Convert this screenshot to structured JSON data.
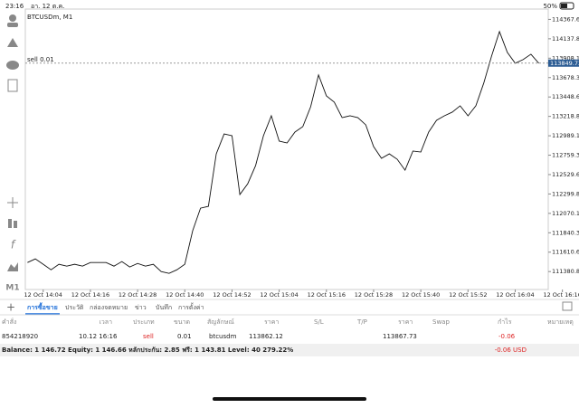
{
  "status_bar": {
    "time": "23:16",
    "date": "อา. 12 ต.ค.",
    "battery": "50%"
  },
  "chart": {
    "type": "line",
    "title": "BTCUSDm, M1",
    "order_label": "sell 0.01",
    "color": "#111111",
    "current_price": 113849.73,
    "x": [
      0,
      2,
      4,
      6,
      8,
      10,
      12,
      14,
      16,
      18,
      20,
      22,
      24,
      26,
      28,
      30,
      32,
      34,
      36,
      38,
      40,
      42,
      44,
      46,
      48,
      50,
      52,
      54,
      56,
      58,
      60,
      62,
      64,
      66,
      68,
      70,
      72,
      74,
      76,
      78,
      80,
      82,
      84,
      86,
      88,
      90,
      92,
      94,
      96,
      98,
      100,
      102,
      104,
      106,
      108,
      110,
      112,
      114,
      116,
      118,
      120,
      122,
      124,
      126,
      128,
      130
    ],
    "values": [
      111488,
      111531,
      111467,
      111402,
      111467,
      111445,
      111467,
      111445,
      111488,
      111488,
      111488,
      111445,
      111499,
      111435,
      111477,
      111445,
      111467,
      111381,
      111360,
      111402,
      111467,
      111864,
      112132,
      112153,
      112775,
      113011,
      112990,
      112293,
      112421,
      112636,
      112990,
      113226,
      112926,
      112904,
      113033,
      113097,
      113333,
      113709,
      113462,
      113387,
      113204,
      113226,
      113204,
      113119,
      112861,
      112722,
      112775,
      112711,
      112582,
      112808,
      112797,
      113033,
      113172,
      113226,
      113269,
      113344,
      113226,
      113344,
      113612,
      113934,
      114223,
      113977,
      113848,
      113891,
      113955,
      113848
    ],
    "xlim": [
      -1,
      137
    ],
    "xticks": [
      {
        "value": 4,
        "label": "12 Oct 14:04"
      },
      {
        "value": 16,
        "label": "12 Oct 14:16"
      },
      {
        "value": 28,
        "label": "12 Oct 14:28"
      },
      {
        "value": 40,
        "label": "12 Oct 14:40"
      },
      {
        "value": 52,
        "label": "12 Oct 14:52"
      },
      {
        "value": 64,
        "label": "12 Oct 15:04"
      },
      {
        "value": 76,
        "label": "12 Oct 15:16"
      },
      {
        "value": 88,
        "label": "12 Oct 15:28"
      },
      {
        "value": 100,
        "label": "12 Oct 15:40"
      },
      {
        "value": 112,
        "label": "12 Oct 15:52"
      },
      {
        "value": 124,
        "label": "12 Oct 16:04"
      },
      {
        "value": 136,
        "label": "12 Oct 16:16"
      }
    ],
    "ylim": [
      111190,
      114490
    ],
    "yticks": [
      {
        "value": 114367.6,
        "label": "114367.60"
      },
      114137.85,
      {
        "value": 113908.1,
        "label": "113908.10"
      },
      113678.35,
      {
        "value": 113448.6,
        "label": "113448.60"
      },
      113218.85,
      {
        "value": 112989.1,
        "label": "112989.10"
      },
      112759.35,
      {
        "value": 112529.6,
        "label": "112529.60"
      },
      112299.85,
      {
        "value": 112070.1,
        "label": "112070.10"
      },
      111840.35,
      {
        "value": 111610.6,
        "label": "111610.60"
      },
      111380.85
    ]
  },
  "tabs": [
    "การซื้อขาย",
    "ประวัติ",
    "กล่องจดหมาย",
    "ข่าว",
    "บันทึก",
    "การตั้งค่า"
  ],
  "table": {
    "header": [
      "คำสั่ง",
      "เวลา",
      "ประเภท",
      "ขนาด",
      "สัญลักษณ์",
      "ราคา",
      "S/L",
      "T/P",
      "ราคา",
      "Swap",
      "กำไร",
      "หมายเหตุ"
    ],
    "rows": [
      [
        "854218920",
        "10.12 16:16",
        "sell",
        "0.01",
        "btcusdm",
        "113862.12",
        "113867.73",
        "-0.06"
      ]
    ]
  },
  "summary": {
    "text": "Balance: 1 146.72 Equity: 1 146.66 หลักประกัน: 2.85 ฟรี: 1 143.81 Level: 40 279.22%",
    "profit": "-0.06 USD"
  }
}
